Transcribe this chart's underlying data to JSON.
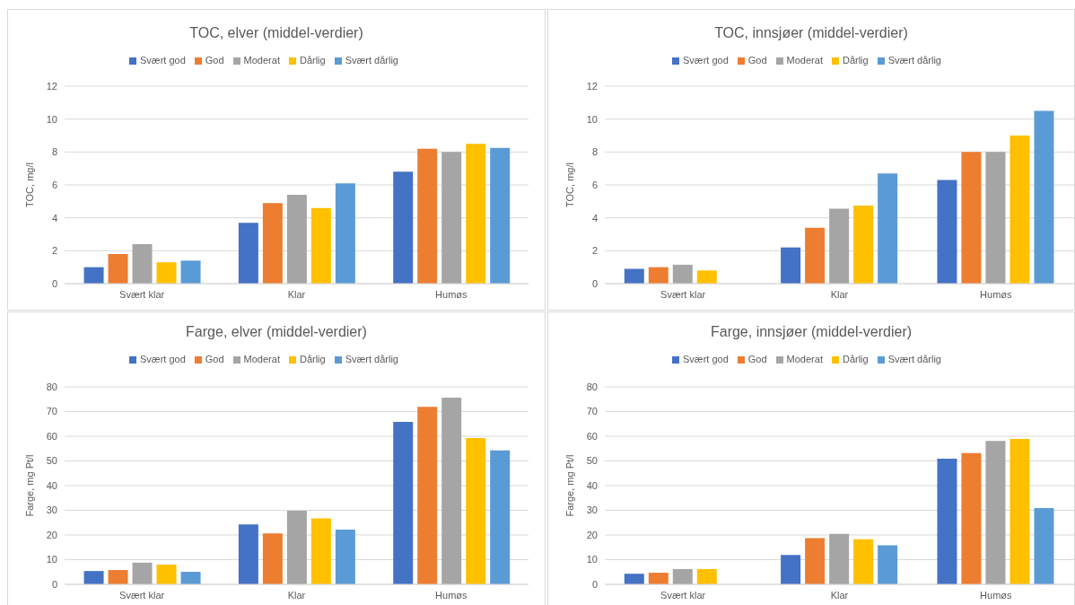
{
  "chart_data": [
    {
      "type": "bar",
      "title": "TOC, elver (middel-verdier)",
      "ylabel": "TOC, mg/l",
      "categories": [
        "Svært klar",
        "Klar",
        "Humøs"
      ],
      "series": [
        {
          "name": "Svært god",
          "color": "#4472c4",
          "values": [
            1.0,
            3.7,
            6.8
          ]
        },
        {
          "name": "God",
          "color": "#ed7d31",
          "values": [
            1.8,
            4.9,
            8.2
          ]
        },
        {
          "name": "Moderat",
          "color": "#a5a5a5",
          "values": [
            2.4,
            5.4,
            8.0
          ]
        },
        {
          "name": "Dårlig",
          "color": "#ffc000",
          "values": [
            1.3,
            4.6,
            8.5
          ]
        },
        {
          "name": "Svært dårlig",
          "color": "#5b9bd5",
          "values": [
            1.4,
            6.1,
            8.25
          ]
        }
      ],
      "ylim": [
        0,
        12
      ],
      "yticks": [
        0,
        2,
        4,
        6,
        8,
        10,
        12
      ],
      "grid": "y",
      "legend": "top"
    },
    {
      "type": "bar",
      "title": "TOC, innsjøer (middel-verdier)",
      "ylabel": "TOC, mg/l",
      "categories": [
        "Svært klar",
        "Klar",
        "Humøs"
      ],
      "series": [
        {
          "name": "Svært god",
          "color": "#4472c4",
          "values": [
            0.9,
            2.2,
            6.3
          ]
        },
        {
          "name": "God",
          "color": "#ed7d31",
          "values": [
            1.0,
            3.4,
            8.0
          ]
        },
        {
          "name": "Moderat",
          "color": "#a5a5a5",
          "values": [
            1.15,
            4.55,
            8.0
          ]
        },
        {
          "name": "Dårlig",
          "color": "#ffc000",
          "values": [
            0.8,
            4.75,
            9.0
          ]
        },
        {
          "name": "Svært dårlig",
          "color": "#5b9bd5",
          "values": [
            null,
            6.7,
            10.5
          ]
        }
      ],
      "ylim": [
        0,
        12
      ],
      "yticks": [
        0,
        2,
        4,
        6,
        8,
        10,
        12
      ],
      "grid": "y",
      "legend": "top"
    },
    {
      "type": "bar",
      "title": "Farge, elver (middel-verdier)",
      "ylabel": "Farge, mg Pt/l",
      "categories": [
        "Svært klar",
        "Klar",
        "Humøs"
      ],
      "series": [
        {
          "name": "Svært god",
          "color": "#4472c4",
          "values": [
            5.4,
            24.3,
            65.8
          ]
        },
        {
          "name": "God",
          "color": "#ed7d31",
          "values": [
            5.8,
            20.6,
            71.9
          ]
        },
        {
          "name": "Moderat",
          "color": "#a5a5a5",
          "values": [
            8.8,
            29.8,
            75.6
          ]
        },
        {
          "name": "Dårlig",
          "color": "#ffc000",
          "values": [
            8.0,
            26.7,
            59.3
          ]
        },
        {
          "name": "Svært dårlig",
          "color": "#5b9bd5",
          "values": [
            5.1,
            22.2,
            54.3
          ]
        }
      ],
      "ylim": [
        0,
        80
      ],
      "yticks": [
        0,
        10,
        20,
        30,
        40,
        50,
        60,
        70,
        80
      ],
      "grid": "y",
      "legend": "top"
    },
    {
      "type": "bar",
      "title": "Farge, innsjøer (middel-verdier)",
      "ylabel": "Farge, mg Pt/l",
      "categories": [
        "Svært klar",
        "Klar",
        "Humøs"
      ],
      "series": [
        {
          "name": "Svært god",
          "color": "#4472c4",
          "values": [
            4.3,
            11.9,
            50.9
          ]
        },
        {
          "name": "God",
          "color": "#ed7d31",
          "values": [
            4.7,
            18.7,
            53.2
          ]
        },
        {
          "name": "Moderat",
          "color": "#a5a5a5",
          "values": [
            6.2,
            20.5,
            58.1
          ]
        },
        {
          "name": "Dårlig",
          "color": "#ffc000",
          "values": [
            6.2,
            18.3,
            58.9
          ]
        },
        {
          "name": "Svært dårlig",
          "color": "#5b9bd5",
          "values": [
            null,
            15.8,
            30.9
          ]
        }
      ],
      "ylim": [
        0,
        80
      ],
      "yticks": [
        0,
        10,
        20,
        30,
        40,
        50,
        60,
        70,
        80
      ],
      "grid": "y",
      "legend": "top"
    }
  ]
}
